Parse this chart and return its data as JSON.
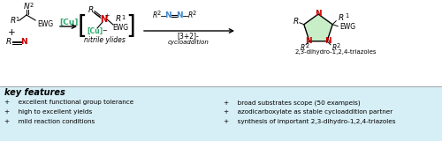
{
  "fig_width": 5.0,
  "fig_height": 1.6,
  "dpi": 100,
  "bg_top": "#ffffff",
  "bg_bottom": "#d6eef5",
  "cu_color": "#2eaa6e",
  "n_blue": "#4488cc",
  "n_red": "#cc0000",
  "black": "#000000",
  "ring_fill": "#c8eec8",
  "key_features_title": "key features",
  "features_left": [
    "+  excellent functional group tolerance",
    "+  high to excellent yields",
    "+  mild reaction conditions"
  ],
  "features_right": [
    "+  broad substrates scope (50 exampels)",
    "+  azodicarboxylate as stable cycloaddition partner",
    "+  synthesis of important 2,3-dihydro-1,2,4-triazoles"
  ]
}
